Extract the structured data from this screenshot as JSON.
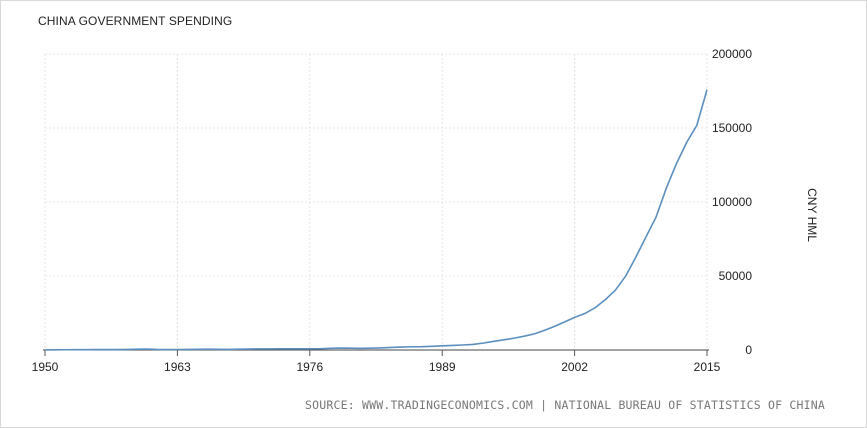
{
  "chart_data": {
    "type": "line",
    "title": "CHINA GOVERNMENT SPENDING",
    "ylabel": "CNY HML",
    "xlabel": "",
    "xlim": [
      1950,
      2015
    ],
    "ylim": [
      0,
      200000
    ],
    "x_ticks": [
      "1950",
      "1963",
      "1976",
      "1989",
      "2002",
      "2015"
    ],
    "y_ticks": [
      "200000",
      "150000",
      "100000",
      "50000",
      "0"
    ],
    "grid": true,
    "line_color": "#5b8fbf",
    "series": [
      {
        "x": [
          1950,
          1951,
          1952,
          1953,
          1954,
          1955,
          1956,
          1957,
          1958,
          1959,
          1960,
          1961,
          1962,
          1963,
          1964,
          1965,
          1966,
          1967,
          1968,
          1969,
          1970,
          1971,
          1972,
          1973,
          1974,
          1975,
          1976,
          1977,
          1978,
          1979,
          1980,
          1981,
          1982,
          1983,
          1984,
          1985,
          1986,
          1987,
          1988,
          1989,
          1990,
          1991,
          1992,
          1993,
          1994,
          1995,
          1996,
          1997,
          1998,
          1999,
          2000,
          2001,
          2002,
          2003,
          2004,
          2005,
          2006,
          2007,
          2008,
          2009,
          2010,
          2011,
          2012,
          2013,
          2014,
          2015
        ],
        "values": [
          68,
          122,
          176,
          220,
          245,
          262,
          299,
          296,
          400,
          544,
          643,
          367,
          305,
          340,
          394,
          460,
          537,
          437,
          360,
          526,
          649,
          732,
          766,
          809,
          790,
          821,
          806,
          843,
          1122,
          1282,
          1229,
          1138,
          1230,
          1410,
          1701,
          2004,
          2205,
          2262,
          2491,
          2824,
          3084,
          3387,
          3742,
          4642,
          5793,
          6824,
          7938,
          9234,
          10798,
          13188,
          15887,
          18903,
          22053,
          24650,
          28487,
          33930,
          40423,
          49781,
          62593,
          76300,
          89874,
          109248,
          125953,
          140212,
          151786,
          175878
        ]
      }
    ]
  },
  "source_text": "SOURCE: WWW.TRADINGECONOMICS.COM | NATIONAL BUREAU OF STATISTICS OF CHINA"
}
